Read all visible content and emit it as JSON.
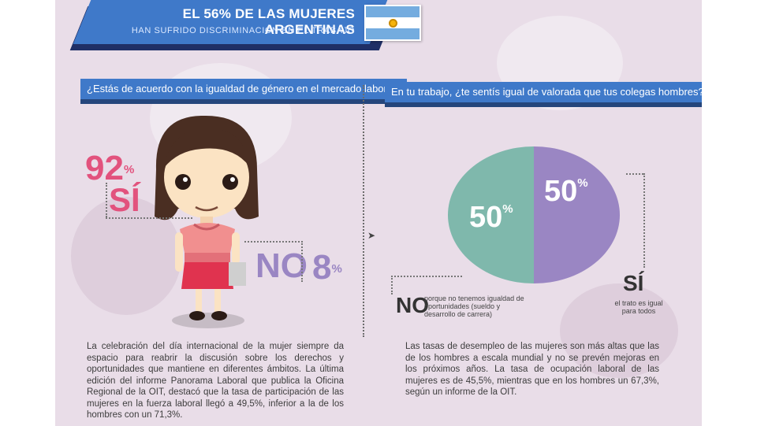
{
  "header": {
    "title": "EL 56% DE LAS MUJERES ARGENTINAS",
    "subtitle": "HAN SUFRIDO DISCRIMINACIÓN EN EL TRABAJO"
  },
  "left": {
    "question": "¿Estás de acuerdo con la igualdad de género en el mercado laboral?",
    "yes_value": "92",
    "yes_label": "SÍ",
    "no_label": "NO",
    "no_value": "8",
    "percent_sign": "%",
    "paragraph": "La celebración del día internacional de la mujer siempre da espacio para reabrir la discusión sobre los derechos y oportunidades que mantiene en diferentes ámbitos. La última edición del informe Panorama Laboral que publica la Oficina Regional de la OIT, destacó que la tasa de participación de las mujeres en la fuerza laboral llegó a 49,5%, inferior a la de los hombres con un 71,3%."
  },
  "right": {
    "question": "En tu trabajo, ¿te sentís igual de valorada que tus colegas hombres?",
    "no_label": "NO",
    "no_desc": "porque no tenemos igualdad de oportunidades (sueldo y desarrollo de carrera)",
    "yes_label": "SÍ",
    "yes_desc": "el trato es igual para todos",
    "paragraph": "Las tasas de desempleo de las mujeres son más altas que las de los hombres a escala mundial y no se prevén mejoras en los próximos años. La tasa de ocupación laboral de las mujeres es de 45,5%, mientras que en los hombres un 67,3%, según un informe de la OIT."
  },
  "chart_data": [
    {
      "type": "bar",
      "categories": [
        "SÍ",
        "NO"
      ],
      "values": [
        92,
        8
      ],
      "title": "¿Estás de acuerdo con la igualdad de género en el mercado laboral?"
    },
    {
      "type": "pie",
      "categories": [
        "NO",
        "SÍ"
      ],
      "values": [
        50,
        50
      ],
      "colors": [
        "#7fb8ac",
        "#9a86c3"
      ],
      "title": "En tu trabajo, ¿te sentís igual de valorada que tus colegas hombres?"
    }
  ],
  "colors": {
    "background": "#e9dde8",
    "banner": "#3f79c9",
    "pink": "#e2527d",
    "purple": "#9a86c3",
    "teal": "#7fb8ac"
  },
  "icons": {
    "flag": "argentina-flag-icon",
    "character": "girl-illustration-icon",
    "arrow": "arrow-right-icon"
  }
}
